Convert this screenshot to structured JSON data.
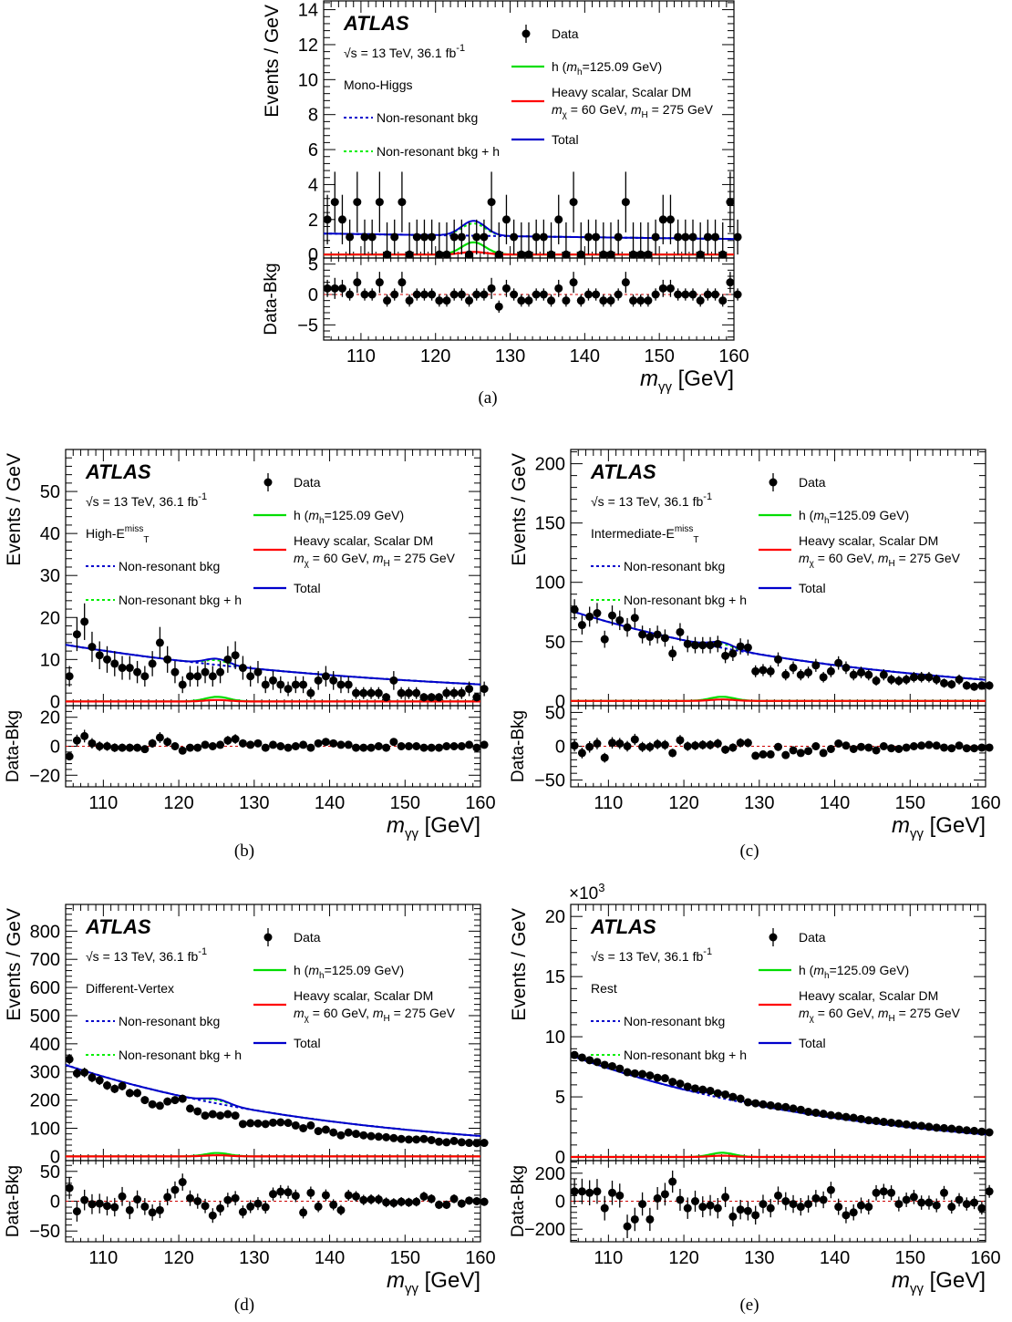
{
  "common": {
    "experiment": "ATLAS",
    "energy_line": "√s = 13 TeV, 36.1 fb",
    "energy_sup": "-1",
    "y_label_top": "Events / GeV",
    "y_label_ratio": "Data-Bkg",
    "x_label_main": "m",
    "x_label_sub": "γγ",
    "x_label_unit": " [GeV]",
    "legend": {
      "data": "Data",
      "h_pre": "h (",
      "h_m": "m",
      "h_sub": "h",
      "h_post": "=125.09 GeV)",
      "non_res": "Non-resonant bkg",
      "non_res_h": "Non-resonant bkg + h",
      "heavy_line1": "Heavy scalar, Scalar DM",
      "heavy_m1": "m",
      "heavy_s1": "χ",
      "heavy_v1": " = 60 GeV, ",
      "heavy_m2": "m",
      "heavy_s2": "H",
      "heavy_v2": " = 275 GeV",
      "total": "Total"
    },
    "colors": {
      "data": "#000000",
      "h_signal": "#00dd00",
      "heavy_signal": "#ff0000",
      "non_res_bkg": "#0000cc",
      "non_res_bkg_h": "#00ee00",
      "total": "#0000cc",
      "ratio_zero": "#cc0000"
    }
  },
  "chart_data": [
    {
      "panel_label": "(a)",
      "category": "Mono-Higgs",
      "category_sup": "",
      "type": "scatter",
      "xlim": [
        105,
        160
      ],
      "ylim": [
        -0.2,
        14.5
      ],
      "ratio_ylim": [
        -7.5,
        6
      ],
      "x_ticks": [
        110,
        120,
        130,
        140,
        150,
        160
      ],
      "y_ticks": [
        0,
        2,
        4,
        6,
        8,
        10,
        12,
        14
      ],
      "ratio_ticks": [
        -5,
        0,
        5
      ],
      "scale_label": "",
      "bkg": {
        "at105": 1.2,
        "slope": 0.3
      },
      "signal_peak": {
        "h": 0.7,
        "heavy": 0.15
      },
      "data_y": [
        2,
        3,
        2,
        1,
        3,
        1,
        1,
        3,
        0,
        1,
        3,
        0,
        1,
        1,
        1,
        0,
        0,
        1,
        1,
        0,
        1,
        1,
        3,
        0,
        2,
        1,
        0,
        0,
        1,
        1,
        0,
        2,
        0,
        3,
        0,
        1,
        1,
        0,
        0,
        1,
        3,
        0,
        0,
        0,
        1,
        2,
        2,
        1,
        1,
        1,
        0,
        1,
        1,
        0,
        3,
        1
      ],
      "ratio_y": [
        1,
        1,
        1,
        0,
        2,
        0,
        0,
        2,
        -1,
        0,
        2,
        -1,
        0,
        0,
        0,
        -1,
        -1,
        0,
        0,
        -1,
        0,
        0,
        1,
        -2,
        1,
        0,
        -1,
        -1,
        0,
        0,
        -1,
        1,
        -1,
        2,
        -1,
        0,
        0,
        -1,
        -1,
        0,
        2,
        -1,
        -1,
        -1,
        0,
        1,
        1,
        0,
        0,
        0,
        -1,
        0,
        0,
        -1,
        2,
        0
      ]
    },
    {
      "panel_label": "(b)",
      "category": "High-E",
      "category_sub": "T",
      "category_sup": "miss",
      "type": "scatter",
      "xlim": [
        105,
        160
      ],
      "ylim": [
        -1,
        60
      ],
      "ratio_ylim": [
        -28,
        28
      ],
      "x_ticks": [
        110,
        120,
        130,
        140,
        150,
        160
      ],
      "y_ticks": [
        0,
        10,
        20,
        30,
        40,
        50
      ],
      "ratio_ticks": [
        -20,
        0,
        20
      ],
      "scale_label": "",
      "bkg": {
        "at105": 13.5,
        "slope": 1.2
      },
      "signal_peak": {
        "h": 1.1,
        "heavy": 0.35
      },
      "data_y": [
        6,
        16,
        19,
        13,
        11,
        10,
        9,
        8,
        8,
        7,
        6,
        9,
        14,
        10,
        7,
        4,
        6,
        6,
        7,
        6,
        7,
        10,
        11,
        8,
        6,
        7,
        4,
        5,
        4,
        3,
        4,
        4,
        2,
        5,
        6,
        5,
        4,
        4,
        2,
        2,
        2,
        2,
        1,
        5,
        2,
        2,
        2,
        1,
        1,
        1,
        2,
        2,
        2,
        3,
        1,
        3
      ],
      "ratio_y": [
        -7,
        4,
        7,
        2,
        0,
        0,
        -1,
        -1,
        -1,
        -1,
        -2,
        2,
        6,
        3,
        0,
        -3,
        -1,
        -1,
        1,
        0,
        1,
        4,
        5,
        2,
        1,
        2,
        -1,
        1,
        0,
        -1,
        0,
        1,
        -1,
        2,
        3,
        2,
        1,
        1,
        -1,
        -1,
        -1,
        0,
        -1,
        3,
        0,
        0,
        0,
        -1,
        -1,
        -1,
        0,
        0,
        0,
        1,
        -1,
        1
      ]
    },
    {
      "panel_label": "(c)",
      "category": "Intermediate-E",
      "category_sub": "T",
      "category_sup": "miss",
      "type": "scatter",
      "xlim": [
        105,
        160
      ],
      "ylim": [
        -4,
        212
      ],
      "ratio_ylim": [
        -60,
        60
      ],
      "x_ticks": [
        110,
        120,
        130,
        140,
        150,
        160
      ],
      "y_ticks": [
        0,
        50,
        100,
        150,
        200
      ],
      "ratio_ticks": [
        -50,
        0,
        50
      ],
      "scale_label": "",
      "bkg": {
        "at105": 76,
        "slope": 1.45
      },
      "signal_peak": {
        "h": 3.5,
        "heavy": 1.2
      },
      "data_y": [
        77,
        64,
        71,
        74,
        52,
        72,
        68,
        62,
        70,
        56,
        54,
        56,
        53,
        40,
        58,
        48,
        47,
        47,
        47,
        48,
        38,
        40,
        46,
        45,
        25,
        26,
        25,
        35,
        22,
        28,
        22,
        24,
        30,
        20,
        25,
        32,
        28,
        22,
        24,
        22,
        17,
        22,
        18,
        17,
        18,
        20,
        20,
        20,
        18,
        15,
        14,
        18,
        13,
        12,
        13,
        13
      ],
      "ratio_y": [
        1,
        -10,
        -1,
        4,
        -17,
        5,
        4,
        0,
        10,
        -1,
        -1,
        3,
        2,
        -10,
        9,
        0,
        1,
        2,
        2,
        4,
        -5,
        -2,
        5,
        5,
        -14,
        -12,
        -12,
        -1,
        -13,
        -6,
        -10,
        -7,
        0,
        -10,
        -4,
        4,
        1,
        -4,
        -1,
        -2,
        -6,
        0,
        -3,
        -4,
        -2,
        0,
        1,
        2,
        1,
        -2,
        -3,
        1,
        -3,
        -3,
        -2,
        -2
      ]
    },
    {
      "panel_label": "(d)",
      "category": "Different-Vertex",
      "category_sup": "",
      "type": "scatter",
      "xlim": [
        105,
        160
      ],
      "ylim": [
        -15,
        895
      ],
      "ratio_ylim": [
        -68,
        68
      ],
      "x_ticks": [
        110,
        120,
        130,
        140,
        150,
        160
      ],
      "y_ticks": [
        0,
        100,
        200,
        300,
        400,
        500,
        600,
        700,
        800
      ],
      "ratio_ticks": [
        -50,
        0,
        50
      ],
      "scale_label": "",
      "bkg": {
        "at105": 325,
        "slope": 1.5
      },
      "signal_peak": {
        "h": 12,
        "heavy": 4
      },
      "data_y": [
        345,
        295,
        298,
        280,
        270,
        252,
        240,
        250,
        225,
        225,
        200,
        185,
        180,
        195,
        200,
        205,
        170,
        160,
        145,
        150,
        145,
        150,
        145,
        115,
        118,
        117,
        115,
        120,
        121,
        119,
        110,
        100,
        110,
        90,
        95,
        85,
        75,
        85,
        80,
        75,
        72,
        70,
        68,
        65,
        62,
        60,
        60,
        62,
        58,
        52,
        50,
        55,
        50,
        48,
        47,
        48
      ],
      "ratio_y": [
        22,
        -17,
        2,
        -5,
        -4,
        -8,
        -10,
        8,
        -15,
        3,
        -9,
        -19,
        -15,
        7,
        19,
        32,
        5,
        0,
        -8,
        -24,
        -12,
        2,
        5,
        -18,
        -9,
        -4,
        -10,
        12,
        16,
        15,
        9,
        -19,
        14,
        -9,
        10,
        -6,
        -15,
        10,
        8,
        2,
        3,
        3,
        -2,
        -3,
        -1,
        -2,
        -1,
        8,
        4,
        -6,
        -6,
        4,
        -4,
        1,
        0,
        -1
      ]
    },
    {
      "panel_label": "(e)",
      "category": "Rest",
      "category_sup": "",
      "type": "scatter",
      "xlim": [
        105,
        160
      ],
      "ylim": [
        -0.3,
        21
      ],
      "ratio_ylim": [
        -290,
        290
      ],
      "x_ticks": [
        110,
        120,
        130,
        140,
        150,
        160
      ],
      "y_ticks": [
        0,
        5,
        10,
        15,
        20
      ],
      "ratio_ticks": [
        -200,
        0,
        200
      ],
      "scale_label": "×10",
      "scale_sup": "3",
      "bkg": {
        "at105": 8.45,
        "slope": 1.5
      },
      "signal_peak": {
        "h": 0.35,
        "heavy": 0.11
      },
      "data_y": [
        8.48,
        8.27,
        8.05,
        7.9,
        7.66,
        7.55,
        7.35,
        7.05,
        6.95,
        6.9,
        6.78,
        6.59,
        6.55,
        6.25,
        6.1,
        5.85,
        5.7,
        5.6,
        5.5,
        5.3,
        5.2,
        5.0,
        4.85,
        4.55,
        4.47,
        4.38,
        4.3,
        4.2,
        4.15,
        4.03,
        3.93,
        3.76,
        3.68,
        3.59,
        3.48,
        3.41,
        3.33,
        3.26,
        3.16,
        3.05,
        3.0,
        2.92,
        2.85,
        2.79,
        2.71,
        2.63,
        2.59,
        2.51,
        2.44,
        2.4,
        2.35,
        2.28,
        2.22,
        2.17,
        2.11,
        2.05
      ],
      "ratio_y": [
        70,
        70,
        60,
        70,
        -50,
        60,
        40,
        -180,
        -130,
        -20,
        -130,
        20,
        50,
        140,
        10,
        -50,
        0,
        -40,
        -30,
        -50,
        30,
        -110,
        -60,
        -70,
        -100,
        -20,
        -50,
        40,
        0,
        -20,
        -40,
        -20,
        20,
        10,
        80,
        -40,
        -100,
        -80,
        -30,
        -40,
        60,
        70,
        60,
        -20,
        10,
        30,
        -10,
        -10,
        -30,
        60,
        -40,
        10,
        -20,
        -10,
        -50,
        70
      ]
    }
  ]
}
